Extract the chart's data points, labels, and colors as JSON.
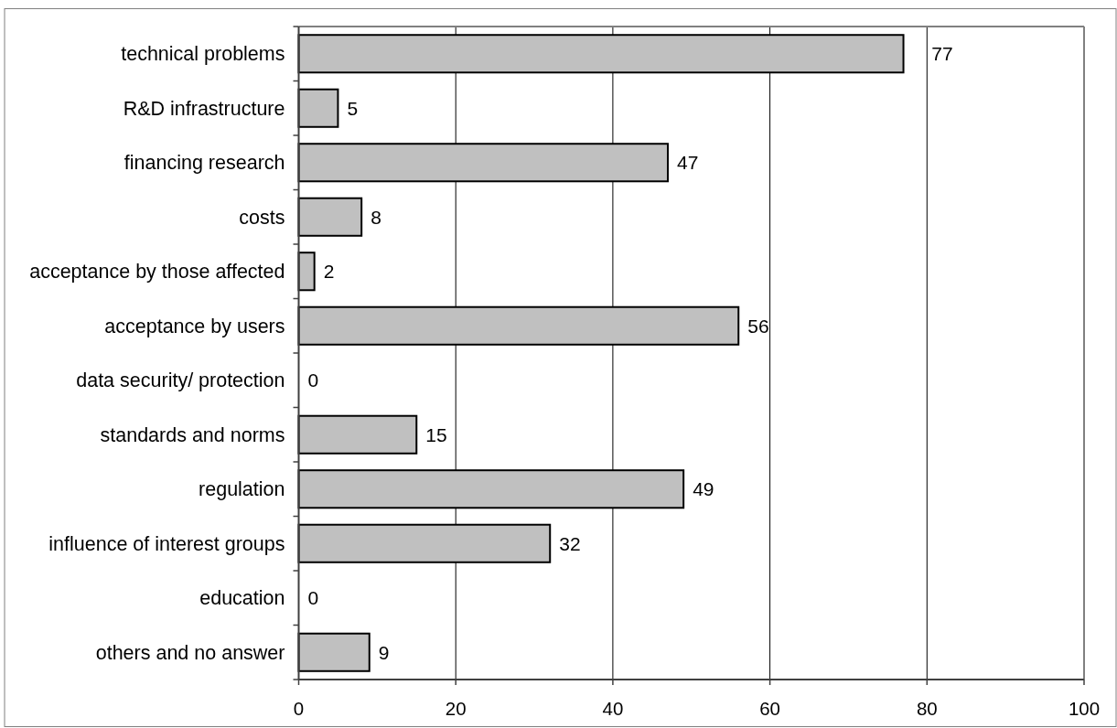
{
  "chart_data": {
    "type": "bar",
    "orientation": "horizontal",
    "categories": [
      "technical problems",
      "R&D infrastructure",
      "financing research",
      "costs",
      "acceptance by those affected",
      "acceptance by users",
      "data security/ protection",
      "standards and norms",
      "regulation",
      "influence of interest groups",
      "education",
      "others and no answer"
    ],
    "values": [
      77,
      5,
      47,
      8,
      2,
      56,
      0,
      15,
      49,
      32,
      0,
      9
    ],
    "color": "#c0c0c0",
    "xlim": [
      0,
      100
    ],
    "xticks": [
      0,
      20,
      40,
      60,
      80,
      100
    ],
    "grid": "x",
    "data_labels": true
  }
}
